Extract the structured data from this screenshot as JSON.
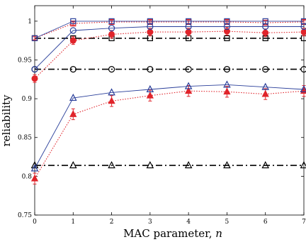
{
  "chart_data": {
    "type": "line",
    "xlabel": "MAC parameter, n",
    "xlabel_text": "MAC parameter, ",
    "xlabel_var": "n",
    "ylabel": "reliability",
    "xlim": [
      0,
      7
    ],
    "ylim": [
      0.75,
      1.02
    ],
    "xticks": [
      0,
      1,
      2,
      3,
      4,
      5,
      6,
      7
    ],
    "yticks": [
      0.75,
      0.8,
      0.85,
      0.9,
      0.95,
      1
    ],
    "ytick_labels": [
      "0.75",
      "0.8",
      "0.85",
      "0.9",
      "0.95",
      "1"
    ],
    "grid": false,
    "legend": "none",
    "x": [
      0,
      1,
      2,
      3,
      4,
      5,
      6,
      7
    ],
    "series": [
      {
        "group": "square",
        "style": "blue-solid",
        "marker": "square",
        "color": "#2a3f9a",
        "values": [
          0.978,
          1.0,
          1.0,
          1.0,
          1.0,
          1.0,
          1.0,
          1.0
        ]
      },
      {
        "group": "square",
        "style": "red-dotted",
        "marker": "square",
        "color": "#e0242b",
        "values": [
          0.978,
          0.997,
          0.999,
          0.999,
          0.999,
          0.999,
          0.998,
          0.999
        ],
        "err": 0.002
      },
      {
        "group": "square",
        "style": "black-dashdot",
        "marker": "square",
        "color": "#000000",
        "values": [
          0.978,
          0.978,
          0.978,
          0.978,
          0.978,
          0.978,
          0.978,
          0.978
        ]
      },
      {
        "group": "circle",
        "style": "blue-solid",
        "marker": "circle",
        "color": "#2a3f9a",
        "values": [
          0.938,
          0.988,
          0.991,
          0.993,
          0.993,
          0.993,
          0.993,
          0.993
        ]
      },
      {
        "group": "circle",
        "style": "red-dotted",
        "marker": "circle",
        "color": "#e0242b",
        "values": [
          0.926,
          0.975,
          0.983,
          0.986,
          0.986,
          0.987,
          0.985,
          0.986
        ],
        "err": 0.005
      },
      {
        "group": "circle",
        "style": "black-dashdot",
        "marker": "circle",
        "color": "#000000",
        "values": [
          0.938,
          0.938,
          0.938,
          0.938,
          0.938,
          0.938,
          0.938,
          0.938
        ]
      },
      {
        "group": "triangle",
        "style": "blue-solid",
        "marker": "triangle",
        "color": "#2a3f9a",
        "values": [
          0.81,
          0.901,
          0.908,
          0.912,
          0.916,
          0.918,
          0.915,
          0.912
        ]
      },
      {
        "group": "triangle",
        "style": "red-dotted",
        "marker": "triangle",
        "color": "#e0242b",
        "values": [
          0.797,
          0.88,
          0.897,
          0.904,
          0.91,
          0.909,
          0.906,
          0.91
        ],
        "err": 0.007
      },
      {
        "group": "triangle",
        "style": "black-dashdot",
        "marker": "triangle",
        "color": "#000000",
        "values": [
          0.814,
          0.814,
          0.814,
          0.814,
          0.814,
          0.814,
          0.814,
          0.814
        ]
      }
    ]
  }
}
